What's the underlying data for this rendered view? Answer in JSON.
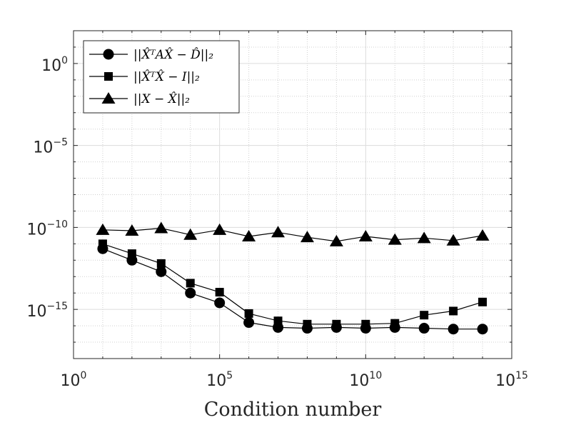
{
  "chart_data": {
    "type": "line",
    "title": "",
    "xlabel": "Condition number",
    "ylabel": "",
    "xscale": "log",
    "yscale": "log",
    "xlim_exp": [
      0,
      15
    ],
    "ylim_exp": [
      -18,
      2
    ],
    "grid": true,
    "legend_position": "top-left",
    "x_ticks": [
      {
        "base": "10",
        "exp": "0",
        "value": 0
      },
      {
        "base": "10",
        "exp": "5",
        "value": 5
      },
      {
        "base": "10",
        "exp": "10",
        "value": 10
      },
      {
        "base": "10",
        "exp": "15",
        "value": 15
      }
    ],
    "y_ticks": [
      {
        "base": "10",
        "exp": "0",
        "value": 0
      },
      {
        "base": "10",
        "exp": "−5",
        "value": -5
      },
      {
        "base": "10",
        "exp": "−10",
        "value": -10
      },
      {
        "base": "10",
        "exp": "−15",
        "value": -15
      }
    ],
    "x_exp": [
      1,
      2,
      3,
      4,
      5,
      6,
      7,
      8,
      9,
      10,
      11,
      12,
      13,
      14
    ],
    "series": [
      {
        "name": "||X̂ᵀAX̂ − D̂||₂",
        "marker": "circle",
        "values_exp": [
          -11.3,
          -12.0,
          -12.7,
          -14.0,
          -14.6,
          -15.8,
          -16.1,
          -16.15,
          -16.1,
          -16.15,
          -16.1,
          -16.15,
          -16.2,
          -16.2
        ]
      },
      {
        "name": "||X̂ᵀX̂ − I||₂",
        "marker": "square",
        "values_exp": [
          -11.0,
          -11.6,
          -12.2,
          -13.4,
          -13.95,
          -15.25,
          -15.7,
          -15.9,
          -15.9,
          -15.9,
          -15.85,
          -15.35,
          -15.1,
          -14.55
        ]
      },
      {
        "name": "||X − X̂||₂",
        "marker": "triangle",
        "values_exp": [
          -10.15,
          -10.2,
          -10.05,
          -10.45,
          -10.15,
          -10.55,
          -10.3,
          -10.6,
          -10.85,
          -10.55,
          -10.75,
          -10.65,
          -10.8,
          -10.5
        ]
      }
    ]
  }
}
